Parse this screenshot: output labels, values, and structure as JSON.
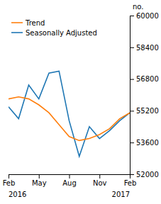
{
  "chart_data": {
    "type": "line",
    "y_label": "no.",
    "categories": [
      "Feb",
      null,
      null,
      "May",
      null,
      null,
      "Aug",
      null,
      null,
      "Nov",
      null,
      null,
      "Feb"
    ],
    "series": [
      {
        "name": "Seasonally Adjusted",
        "values": [
          55400,
          54800,
          56500,
          55800,
          57100,
          57200,
          54700,
          52900,
          54400,
          53800,
          54200,
          54700,
          55100
        ]
      },
      {
        "name": "Trend",
        "values": [
          55800,
          55900,
          55800,
          55500,
          55100,
          54500,
          53900,
          53700,
          53800,
          54000,
          54300,
          54800,
          55100
        ]
      }
    ],
    "annotations": [
      "2016",
      "2017"
    ],
    "ylim": [
      52000,
      60000
    ],
    "yticks": [
      52000,
      53600,
      55200,
      56800,
      58400,
      60000
    ],
    "grid": false,
    "legend": "upper left"
  }
}
